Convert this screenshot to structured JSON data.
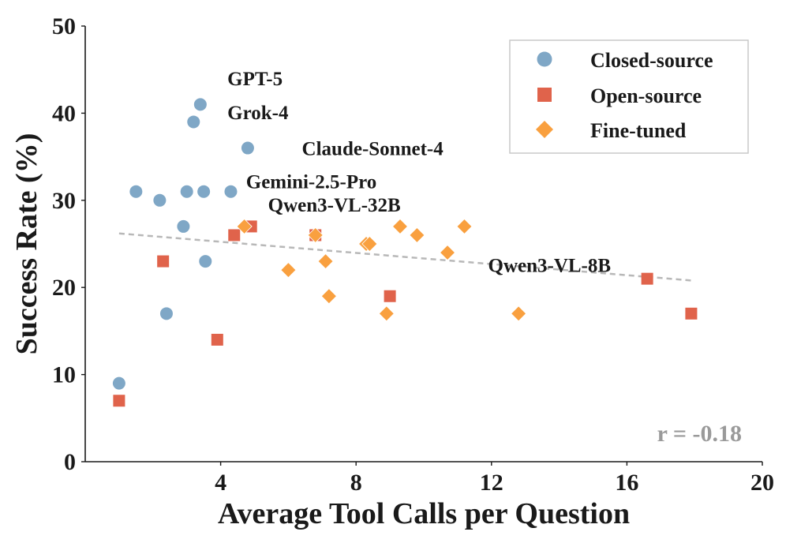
{
  "chart_data": {
    "type": "scatter",
    "title": "",
    "xlabel": "Average Tool Calls per Question",
    "ylabel": "Success Rate (%)",
    "xlim": [
      0,
      20
    ],
    "ylim": [
      0,
      50
    ],
    "xticks": [
      4,
      8,
      12,
      16,
      20
    ],
    "yticks": [
      0,
      10,
      20,
      30,
      40,
      50
    ],
    "grid": false,
    "legend_position": "top-right",
    "colors": {
      "closed": "#7fa7c6",
      "open": "#e0634b",
      "finetuned": "#f9a03f",
      "trend": "#b8b8b8",
      "corr": "#9a9a9a"
    },
    "series": [
      {
        "key": "closed",
        "name": "Closed-source",
        "marker": "circle",
        "points": [
          {
            "x": 1.0,
            "y": 9
          },
          {
            "x": 1.5,
            "y": 31
          },
          {
            "x": 2.2,
            "y": 30
          },
          {
            "x": 2.4,
            "y": 17
          },
          {
            "x": 2.9,
            "y": 27
          },
          {
            "x": 3.0,
            "y": 31
          },
          {
            "x": 3.2,
            "y": 39
          },
          {
            "x": 3.4,
            "y": 41
          },
          {
            "x": 3.5,
            "y": 31
          },
          {
            "x": 3.55,
            "y": 23
          },
          {
            "x": 4.3,
            "y": 31
          },
          {
            "x": 4.8,
            "y": 36
          }
        ]
      },
      {
        "key": "open",
        "name": "Open-source",
        "marker": "square",
        "points": [
          {
            "x": 1.0,
            "y": 7
          },
          {
            "x": 2.3,
            "y": 23
          },
          {
            "x": 3.9,
            "y": 14
          },
          {
            "x": 4.4,
            "y": 26
          },
          {
            "x": 4.9,
            "y": 27
          },
          {
            "x": 6.8,
            "y": 26
          },
          {
            "x": 9.0,
            "y": 19
          },
          {
            "x": 16.6,
            "y": 21
          },
          {
            "x": 17.9,
            "y": 17
          }
        ]
      },
      {
        "key": "finetuned",
        "name": "Fine-tuned",
        "marker": "diamond",
        "points": [
          {
            "x": 4.7,
            "y": 27
          },
          {
            "x": 6.0,
            "y": 22
          },
          {
            "x": 6.8,
            "y": 26
          },
          {
            "x": 7.1,
            "y": 23
          },
          {
            "x": 7.2,
            "y": 19
          },
          {
            "x": 8.3,
            "y": 25
          },
          {
            "x": 8.4,
            "y": 25
          },
          {
            "x": 8.9,
            "y": 17
          },
          {
            "x": 9.3,
            "y": 27
          },
          {
            "x": 9.8,
            "y": 26
          },
          {
            "x": 10.7,
            "y": 24
          },
          {
            "x": 11.2,
            "y": 27
          },
          {
            "x": 12.8,
            "y": 17
          }
        ]
      }
    ],
    "trend_line": {
      "x": [
        1.0,
        17.9
      ],
      "y": [
        26.2,
        20.8
      ]
    },
    "annotations": [
      {
        "text": "GPT-5",
        "x": 4.2,
        "y": 43.2
      },
      {
        "text": "Grok-4",
        "x": 4.2,
        "y": 39.3
      },
      {
        "text": "Claude-Sonnet-4",
        "x": 6.4,
        "y": 35.2
      },
      {
        "text": "Gemini-2.5-Pro",
        "x": 4.75,
        "y": 31.4
      },
      {
        "text": "Qwen3-VL-32B",
        "x": 5.4,
        "y": 28.7
      },
      {
        "text": "Qwen3-VL-8B",
        "x": 11.9,
        "y": 21.8
      }
    ],
    "correlation_label": "r = -0.18"
  }
}
